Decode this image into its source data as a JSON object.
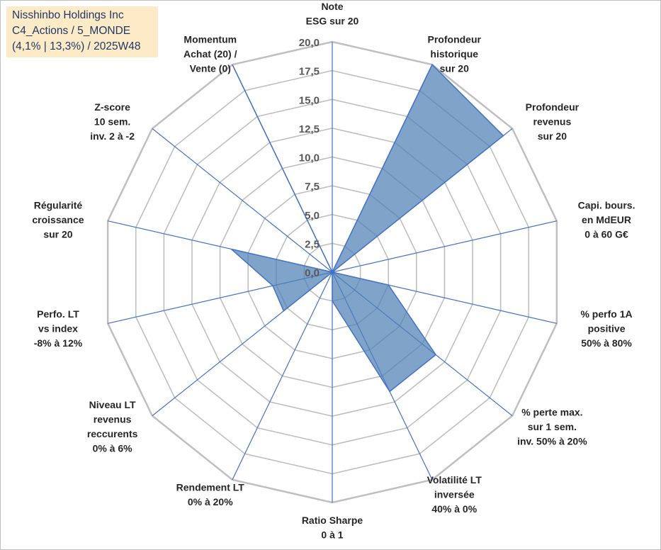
{
  "title_box": {
    "line1": "Nisshinbo Holdings Inc",
    "line2": "C4_Actions / 5_MONDE",
    "line3": "(4,1% | 13,3%) / 2025W48"
  },
  "colors": {
    "fill": "#4f7fb5",
    "stroke": "#4472c4",
    "grid": "#bfbfbf",
    "spoke": "#4472c4",
    "title_bg": "#fdebc8"
  },
  "chart_data": {
    "type": "radar",
    "r_min": 0,
    "r_max": 20,
    "r_step": 2.5,
    "tick_labels": [
      "0,0",
      "2,5",
      "5,0",
      "7,5",
      "10,0",
      "12,5",
      "15,0",
      "17,5",
      "20,0"
    ],
    "axes": [
      {
        "lines": [
          "Note",
          "ESG sur 20"
        ],
        "value": 0
      },
      {
        "lines": [
          "Profondeur",
          "historique",
          "sur 20"
        ],
        "value": 20
      },
      {
        "lines": [
          "Profondeur",
          "revenus",
          "sur 20"
        ],
        "value": 19
      },
      {
        "lines": [
          "Capi. bours.",
          "en MdEUR",
          "0 à 60 G€"
        ],
        "value": 0
      },
      {
        "lines": [
          "% perfo 1A",
          "positive",
          "50% à 80%"
        ],
        "value": 5
      },
      {
        "lines": [
          "% perte max.",
          "sur 1 sem.",
          "inv. 50% à 20%"
        ],
        "value": 11.5
      },
      {
        "lines": [
          "Volatilité LT",
          "inversée",
          "40% à 0%"
        ],
        "value": 11.5
      },
      {
        "lines": [
          "Ratio Sharpe",
          "0 à 1"
        ],
        "value": 2.5
      },
      {
        "lines": [
          "Rendement LT",
          "0% à 20%"
        ],
        "value": 0
      },
      {
        "lines": [
          "Niveau LT",
          "revenus",
          "reccurents",
          "0% à 6%"
        ],
        "value": 5.4
      },
      {
        "lines": [
          "Perfo. LT",
          "vs index",
          "-8% à 12%"
        ],
        "value": 5.3
      },
      {
        "lines": [
          "Régularité",
          "croissance",
          "sur 20"
        ],
        "value": 9
      },
      {
        "lines": [
          "Z-score",
          "10 sem.",
          "inv. 2 à -2"
        ],
        "value": 0
      },
      {
        "lines": [
          "Momentum",
          "Achat (20) /",
          "Vente (0)"
        ],
        "value": 20
      }
    ]
  }
}
